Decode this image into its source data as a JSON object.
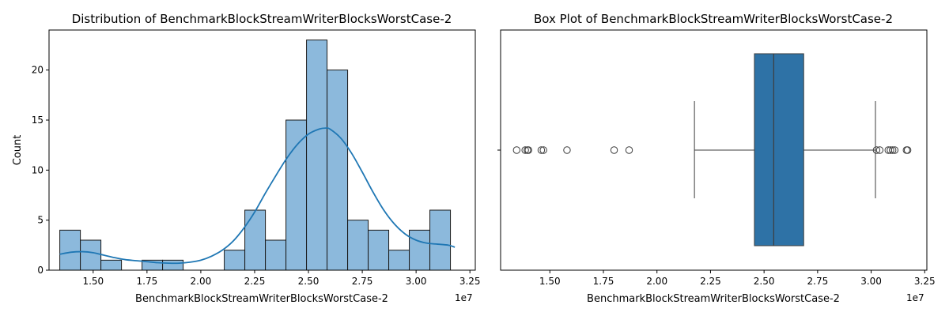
{
  "chart_data": [
    {
      "type": "bar",
      "title": "Distribution of BenchmarkBlockStreamWriterBlocksWorstCase-2",
      "xlabel": "BenchmarkBlockStreamWriterBlocksWorstCase-2",
      "ylabel": "Count",
      "x_offset_text": "1e7",
      "xlim": [
        1.295,
        3.275
      ],
      "ylim": [
        0,
        24
      ],
      "xticks": [
        "1.50",
        "1.75",
        "2.00",
        "2.25",
        "2.50",
        "2.75",
        "3.00",
        "3.25"
      ],
      "xtick_values": [
        1.5,
        1.75,
        2.0,
        2.25,
        2.5,
        2.75,
        3.0,
        3.25
      ],
      "yticks": [
        "0",
        "5",
        "10",
        "15",
        "20"
      ],
      "ytick_values": [
        0,
        5,
        10,
        15,
        20
      ],
      "bin_edges": [
        1.345,
        1.4405,
        1.536,
        1.6315,
        1.727,
        1.8225,
        1.918,
        2.0135,
        2.109,
        2.2045,
        2.3,
        2.3955,
        2.491,
        2.5865,
        2.682,
        2.7775,
        2.873,
        2.9685,
        3.064,
        3.1595
      ],
      "values": [
        4,
        3,
        1,
        0,
        1,
        1,
        0,
        0,
        2,
        6,
        3,
        15,
        23,
        20,
        5,
        4,
        2,
        4,
        6
      ],
      "kde": {
        "x": [
          1.345,
          1.4,
          1.45,
          1.5,
          1.55,
          1.6,
          1.65,
          1.7,
          1.75,
          1.8,
          1.85,
          1.9,
          1.95,
          2.0,
          2.05,
          2.1,
          2.15,
          2.2,
          2.25,
          2.3,
          2.35,
          2.4,
          2.45,
          2.5,
          2.55,
          2.58,
          2.6,
          2.65,
          2.7,
          2.75,
          2.8,
          2.85,
          2.9,
          2.95,
          3.0,
          3.05,
          3.1,
          3.15,
          3.18
        ],
        "y": [
          1.6,
          1.8,
          1.85,
          1.75,
          1.5,
          1.25,
          1.05,
          0.95,
          0.85,
          0.75,
          0.7,
          0.7,
          0.8,
          1.0,
          1.4,
          2.0,
          2.9,
          4.2,
          5.8,
          7.7,
          9.5,
          11.2,
          12.6,
          13.6,
          14.1,
          14.2,
          14.1,
          13.2,
          11.7,
          9.8,
          7.8,
          6.0,
          4.6,
          3.6,
          3.0,
          2.7,
          2.6,
          2.5,
          2.3
        ]
      },
      "colors": {
        "bar_fill": "#8cb9dc",
        "bar_edge": "#1a1a1a",
        "kde": "#1f77b4"
      }
    },
    {
      "type": "box",
      "title": "Box Plot of BenchmarkBlockStreamWriterBlocksWorstCase-2",
      "xlabel": "BenchmarkBlockStreamWriterBlocksWorstCase-2",
      "x_offset_text": "1e7",
      "xlim": [
        1.27,
        3.26
      ],
      "xticks": [
        "1.50",
        "1.75",
        "2.00",
        "2.25",
        "2.50",
        "2.75",
        "3.00",
        "3.25"
      ],
      "xtick_values": [
        1.5,
        1.75,
        2.0,
        2.25,
        2.5,
        2.75,
        3.0,
        3.25
      ],
      "whisker_low": 2.175,
      "q1": 2.455,
      "median": 2.545,
      "q3": 2.685,
      "whisker_high": 3.02,
      "outliers": [
        1.345,
        1.385,
        1.395,
        1.4,
        1.46,
        1.47,
        1.58,
        1.8,
        1.87,
        3.025,
        3.04,
        3.08,
        3.09,
        3.1,
        3.11,
        3.165,
        3.17
      ],
      "colors": {
        "box_fill": "#2e72a6",
        "line": "#3d3d3d"
      }
    }
  ]
}
